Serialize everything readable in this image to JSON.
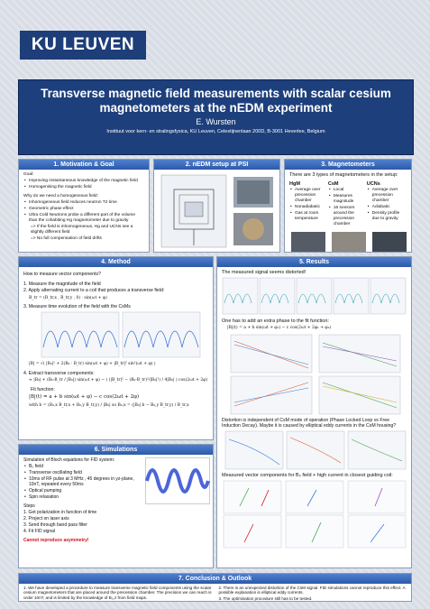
{
  "header": {
    "logo": "KU LEUVEN",
    "title": "Transverse magnetic field measurements with scalar cesium magnetometers at the nEDM experiment",
    "author": "E. Wursten",
    "institute": "Instituut voor kern- en stralingsfysica, KU Leuven, Celestijnenlaan 200D, B-3001 Heverlee, Belgium"
  },
  "motivation": {
    "title": "1. Motivation & Goal",
    "lines": [
      "Goal:",
      "Improving instantaneous knowledge of the magnetic field",
      "Homogenising the magnetic field",
      "Why do we need a homogeneous field:",
      "Inhomogeneous field reduces neutron T2 time",
      "Geometric phase effect",
      "Ultra Cold Neutrons probe a different part of the volume than the cohabiting Hg magnetometer due to gravity",
      "=> If the field is inhomogeneous, Hg and UCNs see a slightly different field",
      "=> No full compensation of field drifts"
    ]
  },
  "setup": {
    "title": "2. nEDM setup at PSI"
  },
  "magnetometers": {
    "title": "3. Magnetometers",
    "intro": "There are 3 types of magnetometers in the setup:",
    "columns": [
      {
        "name": "HgM",
        "items": [
          "Average over precession chamber",
          "Nonadiabatic",
          "Gas at room temperature"
        ]
      },
      {
        "name": "CsM",
        "items": [
          "Local",
          "Measures magnitude",
          "16 sensors around the precession chamber"
        ]
      },
      {
        "name": "UCNs",
        "items": [
          "Average over precession chamber",
          "Adiabatic",
          "Density profile due to gravity"
        ]
      }
    ]
  },
  "method": {
    "title": "4. Method",
    "lines": [
      "How to measure vector components?",
      "1.  Measure the magnitude of the field",
      "2.  Apply alternating current to a coil that produces a transverse field:",
      "B_tr = (B_tr,x , B_tr,y , 0) · sin(ωt + φ)",
      "3.  Measure time evolution of the field with the CsMs",
      "|B| = √( |B₀|² + 2(B₀ · B_tr) sin(ωt + φ) + |B_tr|² sin²(ωt + φ) )",
      "4.  Extract transverse components:",
      "≈ |B₀| + (B₀·B_tr / |B₀|) sin(ωt + φ) − ( (|B_tr|² − (B₀·B_tr)²/|B₀|²) / 4|B₀| ) cos(2ωt + 2φ)",
      "Fit function:",
      "|B|(t) = a + b sin(ωt + φ) − c cos(2ωt + 2φ)",
      "with  b = (B₀,x B_tr,x + B₀,y B_tr,y) / |B₀|   so   B₀,x = (|B₀| b − B₀,y B_tr,y) / B_tr,x"
    ]
  },
  "results": {
    "title": "5. Results",
    "lines": [
      "The measured signal seems distorted!",
      "One has to add an extra phase to the fit function:",
      "|B|(t) = a + b sin(ωt + φ₁) − c cos(2ωt + 2φ₁ + φ₂)",
      "Distortion is independent of CsM mode of operation (Phase Locked Loop vs Free Induction Decay). Maybe it is caused by elliptical eddy currents in the CsM housing?",
      "Measured vector components for B₀ field + high current in closest guiding coil:"
    ]
  },
  "simulations": {
    "title": "6. Simulations",
    "lines": [
      "Simulation of Bloch equations for FID system:",
      "B₀ field",
      "Transverse oscillating field",
      "10ms of RF pulse at 3 MHz , 45 degrees in yz-plane, 10nT, repeated every 50ms",
      "Optical pumping",
      "Spin relaxation",
      "Steps",
      "1.  Get polarization in function of time",
      "2.  Project on laser axis",
      "3.  Send through band pass filter",
      "4.  Fit FID signal",
      "Cannot reproduce asymmetry!"
    ]
  },
  "conclusion": {
    "title": "7. Conclusion & Outlook",
    "lines": [
      "1.  We have developed a procedure to measure transverse magnetic field components using the scalar cesium magnetometers that are placed around the precession chamber. The precision we can reach is order 10nT, and is limited by the knowledge of B₀,z from field maps.",
      "2.  There is an unexpected distortion of the CsM signal. FID simulations cannot reproduce this effect. A possible explanation is elliptical eddy currents.",
      "3.  The optimisation procedure still has to be tested."
    ]
  }
}
